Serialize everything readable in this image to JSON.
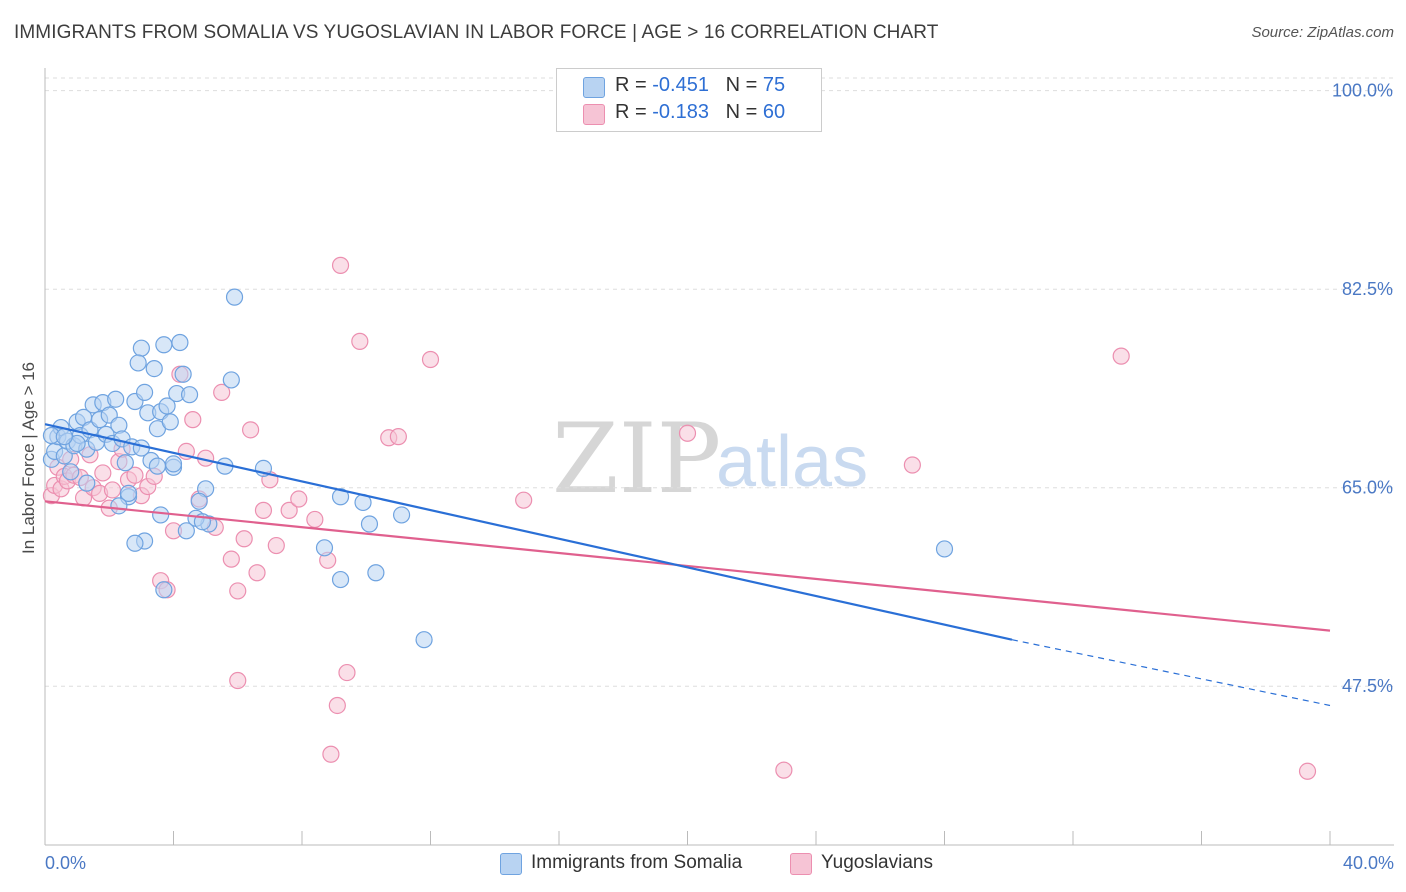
{
  "header": {
    "title": "IMMIGRANTS FROM SOMALIA VS YUGOSLAVIAN IN LABOR FORCE | AGE > 16 CORRELATION CHART",
    "source": "Source: ZipAtlas.com"
  },
  "legend": {
    "series1": {
      "r_label": "R = ",
      "r_value": "-0.451",
      "n_label": "N = ",
      "n_value": "75"
    },
    "series2": {
      "r_label": "R = ",
      "r_value": "-0.183",
      "n_label": "N = ",
      "n_value": "60"
    }
  },
  "watermark": {
    "zip": "ZIP",
    "atlas": "atlas"
  },
  "colors": {
    "blue": "#6fa3e0",
    "blue_fill": "#b8d3f2",
    "blue_line": "#2a6fd6",
    "pink": "#ec8fb0",
    "pink_fill": "#f6c4d5",
    "pink_line": "#e0608e",
    "tick": "#4a78c4"
  },
  "chart_data": {
    "type": "scatter",
    "title": "IMMIGRANTS FROM SOMALIA VS YUGOSLAVIAN IN LABOR FORCE | AGE > 16 CORRELATION CHART",
    "xlabel": "",
    "ylabel": "In Labor Force | Age > 16",
    "xlim": [
      0,
      40
    ],
    "ylim": [
      33.5,
      102
    ],
    "x_tick_labels": [
      "0.0%",
      "40.0%"
    ],
    "y_ticks": [
      47.5,
      65.0,
      82.5,
      100.0
    ],
    "y_tick_labels": [
      "47.5%",
      "65.0%",
      "82.5%",
      "100.0%"
    ],
    "series": [
      {
        "name": "Immigrants from Somalia",
        "r": -0.451,
        "n": 75,
        "trend": {
          "x0": 0,
          "y0": 70.6,
          "x1": 30.1,
          "y1": 51.6,
          "dash_to_x": 40,
          "dash_to_y": 45.8
        },
        "points": [
          [
            0.2,
            67.5
          ],
          [
            0.3,
            68.2
          ],
          [
            0.4,
            69.5
          ],
          [
            0.5,
            70.3
          ],
          [
            0.6,
            67.8
          ],
          [
            0.7,
            69.1
          ],
          [
            0.8,
            66.4
          ],
          [
            0.9,
            68.7
          ],
          [
            1.0,
            70.8
          ],
          [
            1.1,
            69.6
          ],
          [
            1.2,
            71.2
          ],
          [
            1.3,
            68.4
          ],
          [
            1.4,
            70.1
          ],
          [
            1.5,
            72.3
          ],
          [
            1.6,
            69.0
          ],
          [
            1.7,
            71.0
          ],
          [
            1.8,
            72.5
          ],
          [
            1.9,
            69.7
          ],
          [
            2.0,
            71.4
          ],
          [
            2.1,
            68.9
          ],
          [
            2.2,
            72.8
          ],
          [
            2.3,
            70.5
          ],
          [
            2.4,
            69.3
          ],
          [
            2.5,
            67.2
          ],
          [
            2.6,
            64.2
          ],
          [
            2.7,
            68.6
          ],
          [
            2.8,
            72.6
          ],
          [
            3.0,
            77.3
          ],
          [
            3.1,
            73.4
          ],
          [
            3.2,
            71.6
          ],
          [
            3.3,
            67.4
          ],
          [
            3.4,
            75.5
          ],
          [
            3.5,
            70.2
          ],
          [
            3.6,
            71.7
          ],
          [
            3.7,
            77.6
          ],
          [
            3.8,
            72.2
          ],
          [
            3.9,
            70.8
          ],
          [
            4.0,
            66.8
          ],
          [
            4.1,
            73.3
          ],
          [
            4.2,
            77.8
          ],
          [
            4.3,
            75.0
          ],
          [
            4.5,
            73.2
          ],
          [
            2.9,
            76.0
          ],
          [
            3.1,
            60.3
          ],
          [
            2.6,
            64.5
          ],
          [
            3.0,
            68.5
          ],
          [
            4.0,
            67.1
          ],
          [
            5.6,
            66.9
          ],
          [
            6.8,
            66.7
          ],
          [
            9.2,
            64.2
          ],
          [
            9.9,
            63.7
          ],
          [
            11.1,
            62.6
          ],
          [
            10.1,
            61.8
          ],
          [
            5.0,
            64.9
          ],
          [
            4.8,
            63.8
          ],
          [
            4.4,
            61.2
          ],
          [
            8.7,
            59.7
          ],
          [
            5.1,
            61.8
          ],
          [
            3.7,
            56.0
          ],
          [
            4.7,
            62.3
          ],
          [
            1.0,
            68.9
          ],
          [
            1.3,
            65.4
          ],
          [
            0.2,
            69.6
          ],
          [
            0.6,
            69.5
          ],
          [
            2.3,
            63.4
          ],
          [
            3.5,
            66.9
          ],
          [
            4.9,
            62.0
          ],
          [
            5.9,
            81.8
          ],
          [
            5.8,
            74.5
          ],
          [
            3.6,
            62.6
          ],
          [
            9.2,
            56.9
          ],
          [
            10.3,
            57.5
          ],
          [
            2.8,
            60.1
          ],
          [
            11.8,
            51.6
          ],
          [
            28.0,
            59.6
          ]
        ]
      },
      {
        "name": "Yugoslavians",
        "r": -0.183,
        "n": 60,
        "trend": {
          "x0": 0,
          "y0": 63.8,
          "x1": 40,
          "y1": 52.4
        },
        "points": [
          [
            0.2,
            64.3
          ],
          [
            0.3,
            65.2
          ],
          [
            0.4,
            66.8
          ],
          [
            0.5,
            64.9
          ],
          [
            0.6,
            66.0
          ],
          [
            0.7,
            65.6
          ],
          [
            0.8,
            67.5
          ],
          [
            0.9,
            66.1
          ],
          [
            1.1,
            65.9
          ],
          [
            1.2,
            64.1
          ],
          [
            1.4,
            67.9
          ],
          [
            1.5,
            65.0
          ],
          [
            1.7,
            64.5
          ],
          [
            1.8,
            66.3
          ],
          [
            2.0,
            63.2
          ],
          [
            2.1,
            64.8
          ],
          [
            2.3,
            67.3
          ],
          [
            2.4,
            68.4
          ],
          [
            2.6,
            65.7
          ],
          [
            2.8,
            66.1
          ],
          [
            3.0,
            64.3
          ],
          [
            3.2,
            65.1
          ],
          [
            3.4,
            66.0
          ],
          [
            3.6,
            56.8
          ],
          [
            3.8,
            56.0
          ],
          [
            4.0,
            61.2
          ],
          [
            4.2,
            75.0
          ],
          [
            4.4,
            68.2
          ],
          [
            4.6,
            71.0
          ],
          [
            4.8,
            64.0
          ],
          [
            5.0,
            67.6
          ],
          [
            5.3,
            61.5
          ],
          [
            5.5,
            73.4
          ],
          [
            5.8,
            58.7
          ],
          [
            6.0,
            48.0
          ],
          [
            6.2,
            60.5
          ],
          [
            6.4,
            70.1
          ],
          [
            6.6,
            57.5
          ],
          [
            6.8,
            63.0
          ],
          [
            7.0,
            65.7
          ],
          [
            7.2,
            59.9
          ],
          [
            7.6,
            63.0
          ],
          [
            7.9,
            64.0
          ],
          [
            8.4,
            62.2
          ],
          [
            8.8,
            58.6
          ],
          [
            8.9,
            41.5
          ],
          [
            9.4,
            48.7
          ],
          [
            9.8,
            77.9
          ],
          [
            9.2,
            84.6
          ],
          [
            10.7,
            69.4
          ],
          [
            12.0,
            76.3
          ],
          [
            11.0,
            69.5
          ],
          [
            14.9,
            63.9
          ],
          [
            20.0,
            69.8
          ],
          [
            23.0,
            40.1
          ],
          [
            27.0,
            67.0
          ],
          [
            33.5,
            76.6
          ],
          [
            39.3,
            40.0
          ],
          [
            6.0,
            55.9
          ],
          [
            9.1,
            45.8
          ]
        ]
      }
    ]
  }
}
